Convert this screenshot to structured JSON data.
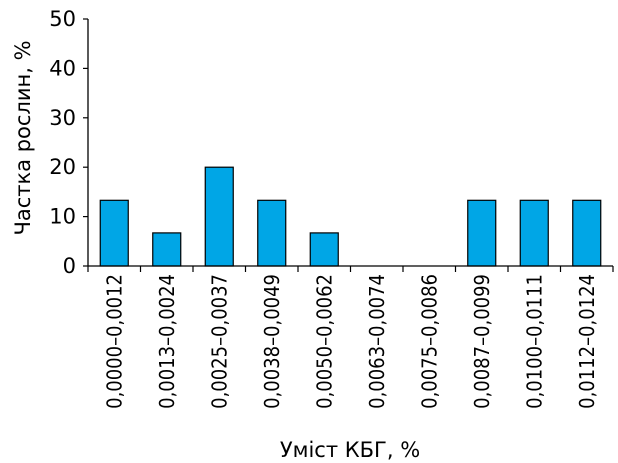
{
  "chart_data": {
    "type": "bar",
    "xlabel": "Уміст КБГ, %",
    "ylabel": "Частка рослин, %",
    "ylim": [
      0,
      50
    ],
    "yticks": [
      0,
      10,
      20,
      30,
      40,
      50
    ],
    "grid": false,
    "bar_color": "#00a6e6",
    "categories": [
      "0,0000–0,0012",
      "0,0013–0,0024",
      "0,0025–0,0037",
      "0,0038–0,0049",
      "0,0050–0,0062",
      "0,0063–0,0074",
      "0,0075–0,0086",
      "0,0087–0,0099",
      "0,0100–0,0111",
      "0,0112–0,0124"
    ],
    "values": [
      13.3,
      6.7,
      20.0,
      13.3,
      6.7,
      0,
      0,
      13.3,
      13.3,
      13.3
    ]
  }
}
